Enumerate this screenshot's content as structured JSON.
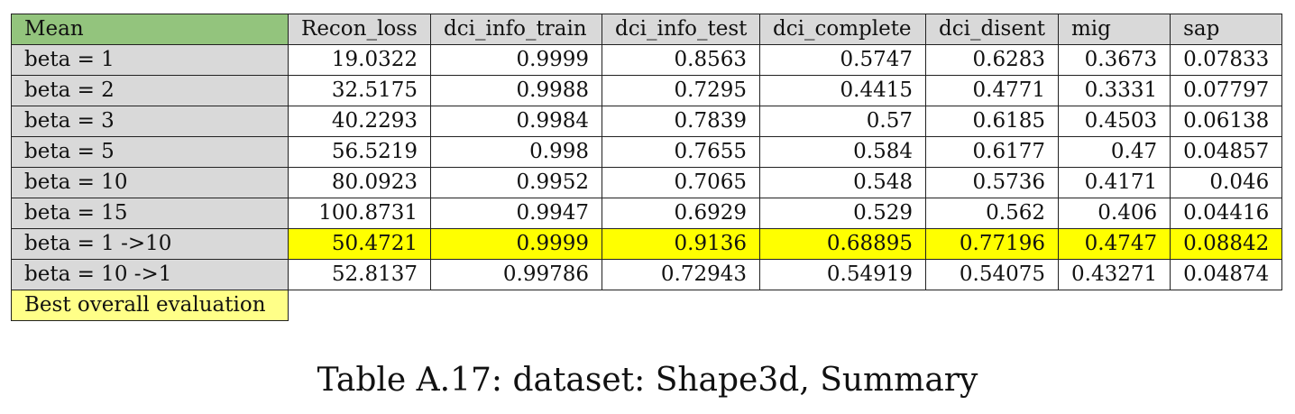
{
  "colors": {
    "header_first_bg": "#93c47d",
    "header_bg": "#d9d9d9",
    "label_bg": "#d9d9d9",
    "highlight_bg": "#ffff00",
    "legend_bg": "#ffff88",
    "cell_bg": "#ffffff"
  },
  "table": {
    "columns": [
      "Mean",
      "Recon_loss",
      "dci_info_train",
      "dci_info_test",
      "dci_complete",
      "dci_disent",
      "mig",
      "sap"
    ],
    "rows": [
      {
        "label": "beta = 1",
        "values": [
          "19.0322",
          "0.9999",
          "0.8563",
          "0.5747",
          "0.6283",
          "0.3673",
          "0.07833"
        ],
        "highlight": false
      },
      {
        "label": "beta = 2",
        "values": [
          "32.5175",
          "0.9988",
          "0.7295",
          "0.4415",
          "0.4771",
          "0.3331",
          "0.07797"
        ],
        "highlight": false
      },
      {
        "label": "beta = 3",
        "values": [
          "40.2293",
          "0.9984",
          "0.7839",
          "0.57",
          "0.6185",
          "0.4503",
          "0.06138"
        ],
        "highlight": false
      },
      {
        "label": "beta = 5",
        "values": [
          "56.5219",
          "0.998",
          "0.7655",
          "0.584",
          "0.6177",
          "0.47",
          "0.04857"
        ],
        "highlight": false
      },
      {
        "label": "beta = 10",
        "values": [
          "80.0923",
          "0.9952",
          "0.7065",
          "0.548",
          "0.5736",
          "0.4171",
          "0.046"
        ],
        "highlight": false
      },
      {
        "label": "beta = 15",
        "values": [
          "100.8731",
          "0.9947",
          "0.6929",
          "0.529",
          "0.562",
          "0.406",
          "0.04416"
        ],
        "highlight": false
      },
      {
        "label": "beta = 1 ->10",
        "values": [
          "50.4721",
          "0.9999",
          "0.9136",
          "0.68895",
          "0.77196",
          "0.4747",
          "0.08842"
        ],
        "highlight": true
      },
      {
        "label": "beta = 10 ->1",
        "values": [
          "52.8137",
          "0.99786",
          "0.72943",
          "0.54919",
          "0.54075",
          "0.43271",
          "0.04874"
        ],
        "highlight": false
      }
    ],
    "legend": "Best overall evaluation"
  },
  "caption": "Table A.17: dataset: Shape3d, Summary"
}
